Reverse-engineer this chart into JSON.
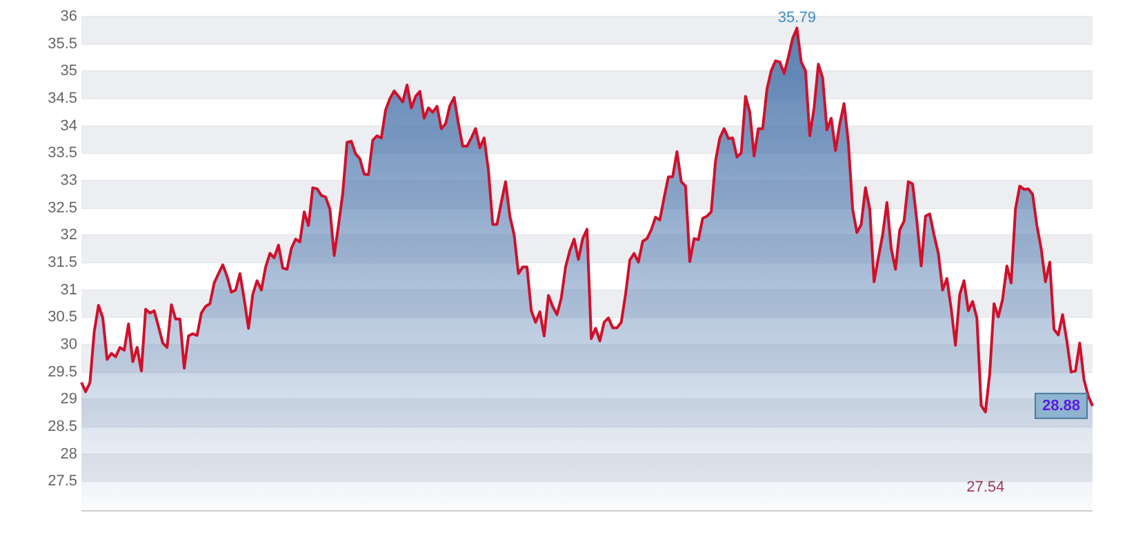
{
  "chart_data": {
    "type": "area",
    "categories": [
      null,
      null,
      null,
      null,
      null,
      null,
      null,
      null,
      null,
      null,
      null,
      null,
      null,
      null,
      null,
      null,
      null,
      null,
      null,
      null,
      null,
      null,
      null,
      null,
      null,
      null,
      null,
      null,
      null,
      null,
      null,
      null,
      null,
      null,
      null,
      null,
      null,
      null,
      null,
      null,
      null,
      null,
      null,
      null,
      null,
      null,
      null,
      null,
      null,
      null,
      null,
      null,
      null,
      null,
      null,
      null,
      null,
      null,
      null,
      null,
      null,
      null,
      null,
      null,
      null,
      null,
      null,
      null,
      null,
      null,
      null,
      null,
      null,
      null,
      null,
      null,
      null,
      null,
      null,
      null,
      null,
      null,
      null,
      null,
      null,
      null,
      null,
      null,
      null,
      null,
      null,
      null,
      null,
      null,
      null,
      null,
      null,
      null,
      null,
      null,
      null,
      null,
      null,
      null,
      null,
      null,
      null,
      null,
      null,
      null,
      null,
      null,
      null,
      null,
      null,
      null,
      null,
      null,
      null,
      null,
      null,
      null,
      null,
      null,
      null,
      null,
      null,
      null,
      null,
      null,
      null,
      null,
      null,
      null,
      null,
      null,
      null,
      null,
      null,
      null,
      null,
      null,
      null,
      null,
      null,
      null,
      null,
      null,
      null,
      null,
      null,
      null,
      null,
      null,
      null,
      null,
      null,
      null,
      null,
      null,
      null,
      null,
      null,
      null,
      null,
      null,
      null,
      null,
      null,
      null,
      null,
      null,
      null,
      null,
      null,
      null,
      null,
      null,
      null,
      null,
      null,
      null,
      null,
      null,
      null,
      null,
      null,
      null,
      null,
      null,
      null,
      null,
      null,
      null,
      null,
      null,
      null,
      null,
      null,
      null,
      null,
      null,
      null,
      null,
      null,
      null,
      null,
      null,
      null,
      null,
      null,
      null,
      null,
      null,
      null,
      null,
      null,
      null,
      null,
      null,
      null,
      null,
      null,
      null,
      null,
      null,
      null,
      null,
      null,
      null,
      null,
      null,
      null,
      null,
      null,
      null,
      null
    ],
    "series": [
      {
        "color": "#d0102a",
        "values": [
          29.31,
          29.14,
          29.31,
          30.24,
          30.72,
          30.49,
          29.73,
          29.84,
          29.78,
          29.95,
          29.9,
          30.38,
          29.69,
          29.95,
          29.52,
          30.65,
          30.58,
          30.62,
          30.33,
          30.03,
          29.95,
          30.73,
          30.47,
          30.47,
          29.57,
          30.16,
          30.2,
          30.17,
          30.58,
          30.7,
          30.75,
          31.13,
          31.3,
          31.46,
          31.25,
          30.96,
          31.0,
          31.3,
          30.83,
          30.3,
          30.92,
          31.17,
          31.0,
          31.42,
          31.67,
          31.59,
          31.82,
          31.4,
          31.38,
          31.76,
          31.93,
          31.88,
          32.43,
          32.18,
          32.87,
          32.85,
          32.73,
          32.7,
          32.48,
          31.63,
          32.18,
          32.77,
          33.7,
          33.72,
          33.49,
          33.4,
          33.12,
          33.11,
          33.74,
          33.82,
          33.78,
          34.29,
          34.5,
          34.64,
          34.54,
          34.44,
          34.75,
          34.33,
          34.54,
          34.63,
          34.14,
          34.33,
          34.25,
          34.36,
          33.95,
          34.04,
          34.37,
          34.52,
          34.04,
          33.63,
          33.63,
          33.78,
          33.95,
          33.6,
          33.78,
          33.19,
          32.2,
          32.2,
          32.6,
          32.98,
          32.35,
          32.01,
          31.3,
          31.42,
          31.42,
          30.62,
          30.41,
          30.6,
          30.16,
          30.9,
          30.7,
          30.55,
          30.85,
          31.42,
          31.72,
          31.93,
          31.56,
          31.94,
          32.11,
          30.11,
          30.3,
          30.07,
          30.41,
          30.49,
          30.31,
          30.31,
          30.41,
          30.92,
          31.55,
          31.67,
          31.51,
          31.89,
          31.94,
          32.1,
          32.33,
          32.28,
          32.69,
          33.07,
          33.07,
          33.53,
          32.98,
          32.9,
          31.52,
          31.94,
          31.92,
          32.31,
          32.35,
          32.43,
          33.36,
          33.78,
          33.95,
          33.77,
          33.78,
          33.43,
          33.51,
          34.54,
          34.25,
          33.45,
          33.95,
          33.95,
          34.67,
          35.01,
          35.19,
          35.17,
          34.96,
          35.26,
          35.6,
          35.79,
          35.17,
          35.01,
          33.82,
          34.33,
          35.13,
          34.88,
          33.93,
          34.14,
          33.55,
          34.04,
          34.41,
          33.7,
          32.48,
          32.05,
          32.2,
          32.87,
          32.48,
          31.15,
          31.59,
          32.01,
          32.6,
          31.76,
          31.38,
          32.1,
          32.26,
          32.98,
          32.94,
          32.26,
          31.44,
          32.35,
          32.39,
          32.01,
          31.67,
          31.0,
          31.21,
          30.66,
          29.99,
          30.92,
          31.17,
          30.62,
          30.79,
          30.49,
          28.89,
          28.77,
          29.48,
          30.75,
          30.51,
          30.83,
          31.44,
          31.13,
          32.48,
          32.9,
          32.84,
          32.85,
          32.75,
          32.18,
          31.76,
          31.15,
          31.51,
          30.28,
          30.18,
          30.55,
          30.07,
          29.5,
          29.52,
          30.03,
          29.36,
          29.06,
          28.88
        ],
        "value_labels": [
          null,
          null,
          null,
          null,
          null,
          null,
          null,
          null,
          null,
          null,
          null,
          null,
          null,
          null,
          null,
          null,
          null,
          null,
          null,
          null,
          null,
          null,
          null,
          null,
          null,
          null,
          null,
          null,
          null,
          null,
          null,
          null,
          null,
          null,
          null,
          null,
          null,
          null,
          null,
          null,
          null,
          null,
          null,
          null,
          null,
          null,
          null,
          null,
          null,
          null,
          null,
          null,
          null,
          null,
          null,
          null,
          null,
          null,
          null,
          null,
          null,
          null,
          null,
          null,
          null,
          null,
          null,
          null,
          null,
          null,
          null,
          null,
          null,
          null,
          null,
          null,
          null,
          null,
          null,
          null,
          null,
          null,
          null,
          null,
          null,
          null,
          null,
          null,
          null,
          null,
          null,
          null,
          null,
          null,
          null,
          null,
          null,
          null,
          null,
          null,
          null,
          null,
          null,
          null,
          null,
          null,
          null,
          null,
          null,
          null,
          null,
          null,
          null,
          null,
          null,
          null,
          null,
          null,
          null,
          null,
          null,
          null,
          null,
          null,
          null,
          null,
          null,
          null,
          null,
          null,
          null,
          null,
          null,
          null,
          null,
          null,
          null,
          null,
          null,
          null,
          null,
          null,
          null,
          null,
          null,
          null,
          null,
          null,
          null,
          null,
          null,
          null,
          null,
          null,
          null,
          null,
          null,
          null,
          null,
          null,
          null,
          null,
          null,
          null,
          null,
          null,
          null,
          "35.79",
          null,
          null,
          null,
          null,
          null,
          null,
          null,
          null,
          null,
          null,
          null,
          null,
          null,
          null,
          null,
          null,
          null,
          null,
          null,
          null,
          null,
          null,
          null,
          null,
          null,
          null,
          null,
          null,
          null,
          null,
          null,
          null,
          null,
          null,
          null,
          null,
          null,
          null,
          null,
          null,
          null,
          null,
          null,
          null,
          null,
          null,
          null,
          null,
          null,
          null,
          null,
          null,
          null,
          null,
          null,
          null,
          null,
          null,
          null,
          null,
          null,
          null,
          null,
          null,
          null,
          null,
          null,
          null,
          "28.88"
        ]
      }
    ],
    "ylim": [
      27,
      36
    ],
    "yticks": [
      27.5,
      28,
      28.5,
      29,
      29.5,
      30,
      30.5,
      31,
      31.5,
      32,
      32.5,
      33,
      33.5,
      34,
      34.5,
      35,
      35.5,
      36
    ],
    "grid": true,
    "tick_labels": "y",
    "marker": "none",
    "annotations": [
      "27.54"
    ]
  }
}
